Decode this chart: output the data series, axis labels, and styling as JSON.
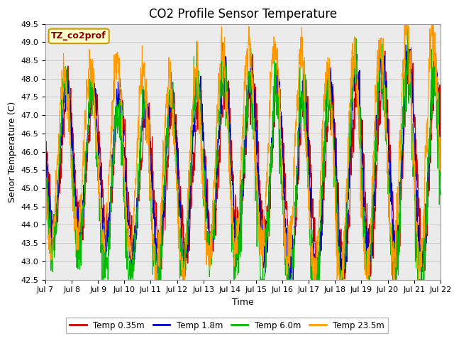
{
  "title": "CO2 Profile Sensor Temperature",
  "xlabel": "Time",
  "ylabel": "Senor Temperature (C)",
  "ylim": [
    42.5,
    49.5
  ],
  "xlim": [
    0,
    360
  ],
  "annotation_text": "TZ_co2prof",
  "annotation_color": "#8B0000",
  "annotation_bg": "#FFFFCC",
  "annotation_border": "#CC9900",
  "x_tick_labels": [
    "Jul 7",
    "Jul 8",
    "Jul 9",
    "Jul 10",
    "Jul 11",
    "Jul 12",
    "Jul 13",
    "Jul 14",
    "Jul 15",
    "Jul 16",
    "Jul 17",
    "Jul 18",
    "Jul 19",
    "Jul 20",
    "Jul 21",
    "Jul 22"
  ],
  "x_tick_positions": [
    0,
    24,
    48,
    72,
    96,
    120,
    144,
    168,
    192,
    216,
    240,
    264,
    288,
    312,
    336,
    360
  ],
  "grid_color": "#cccccc",
  "bg_color": "#ebebeb",
  "fig_color": "#ffffff",
  "colors": {
    "Temp 0.35m": "#cc0000",
    "Temp 1.8m": "#0000cc",
    "Temp 6.0m": "#00bb00",
    "Temp 23.5m": "#ff9900"
  },
  "linewidth": 0.8,
  "title_fontsize": 12,
  "label_fontsize": 9,
  "tick_fontsize": 8
}
